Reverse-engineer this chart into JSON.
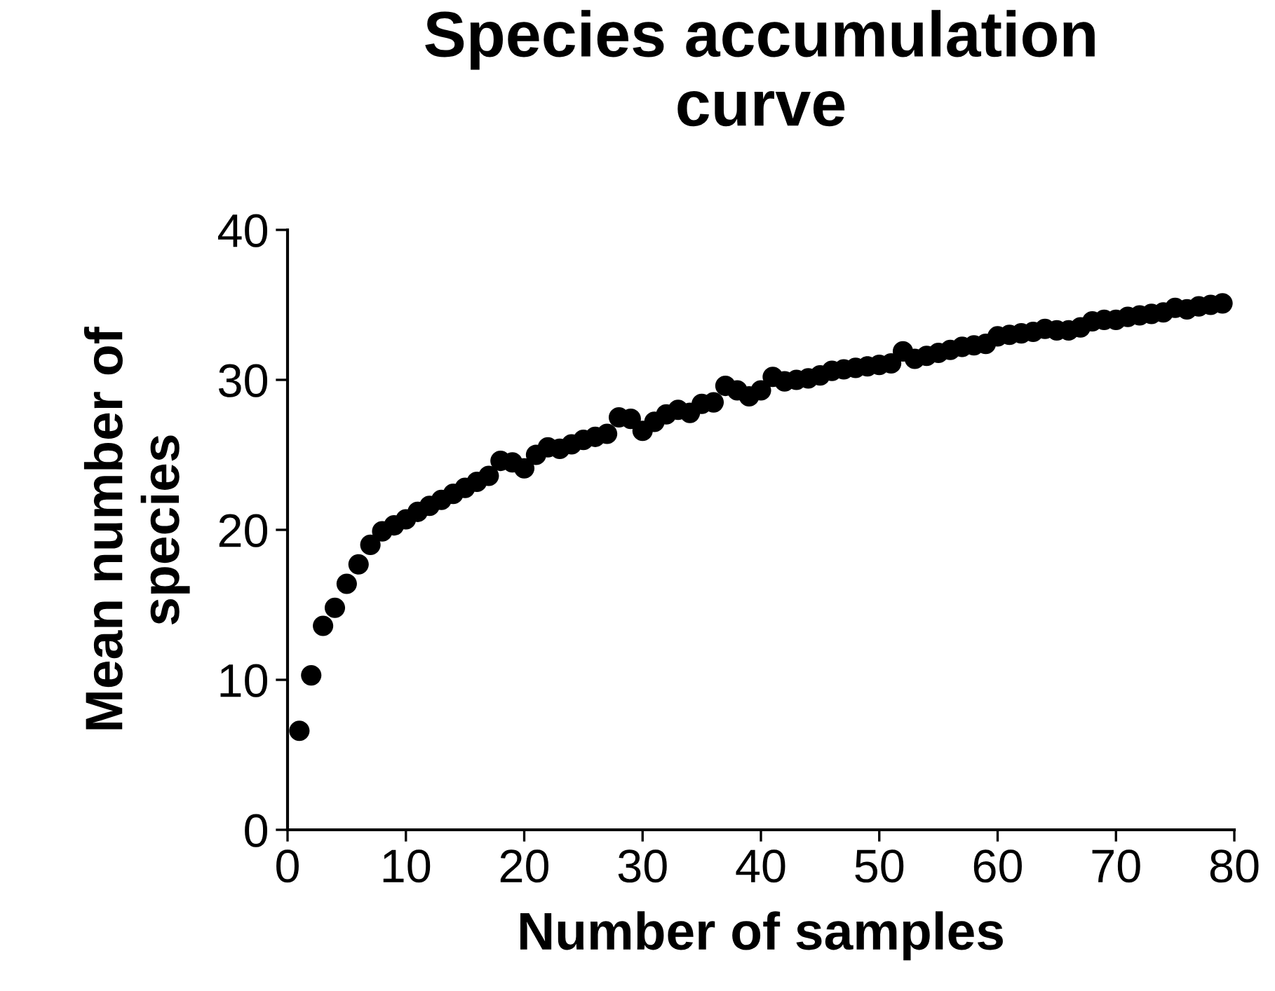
{
  "chart_data": {
    "type": "scatter",
    "title": "Species accumulation\ncurve",
    "xlabel": "Number of samples",
    "ylabel": "Mean number of\nspecies",
    "x": [
      1,
      2,
      3,
      4,
      5,
      6,
      7,
      8,
      9,
      10,
      11,
      12,
      13,
      14,
      15,
      16,
      17,
      18,
      19,
      20,
      21,
      22,
      23,
      24,
      25,
      26,
      27,
      28,
      29,
      30,
      31,
      32,
      33,
      34,
      35,
      36,
      37,
      38,
      39,
      40,
      41,
      42,
      43,
      44,
      45,
      46,
      47,
      48,
      49,
      50,
      51,
      52,
      53,
      54,
      55,
      56,
      57,
      58,
      59,
      60,
      61,
      62,
      63,
      64,
      65,
      66,
      67,
      68,
      69,
      70,
      71,
      72,
      73,
      74,
      75,
      76,
      77,
      78,
      79
    ],
    "values": [
      6.6,
      10.3,
      13.6,
      14.8,
      16.4,
      17.7,
      19.0,
      19.9,
      20.3,
      20.7,
      21.2,
      21.6,
      22.0,
      22.4,
      22.8,
      23.2,
      23.6,
      24.6,
      24.5,
      24.1,
      25.0,
      25.5,
      25.4,
      25.7,
      26.0,
      26.2,
      26.4,
      27.5,
      27.4,
      26.6,
      27.2,
      27.7,
      28.0,
      27.8,
      28.4,
      28.5,
      29.6,
      29.3,
      28.9,
      29.3,
      30.2,
      29.9,
      30.0,
      30.1,
      30.3,
      30.6,
      30.7,
      30.8,
      30.9,
      31.0,
      31.1,
      31.9,
      31.4,
      31.6,
      31.8,
      32.0,
      32.2,
      32.3,
      32.4,
      32.9,
      33.0,
      33.1,
      33.2,
      33.4,
      33.3,
      33.3,
      33.5,
      33.9,
      34.0,
      34.0,
      34.2,
      34.3,
      34.4,
      34.5,
      34.8,
      34.7,
      34.9,
      35.0,
      35.1
    ],
    "color": "#000000",
    "marker": "circle",
    "xlim": [
      0,
      80
    ],
    "ylim": [
      0,
      40
    ],
    "xticks": [
      0,
      10,
      20,
      30,
      40,
      50,
      60,
      70,
      80
    ],
    "yticks": [
      0,
      10,
      20,
      30,
      40
    ],
    "grid": false,
    "legend": false
  }
}
